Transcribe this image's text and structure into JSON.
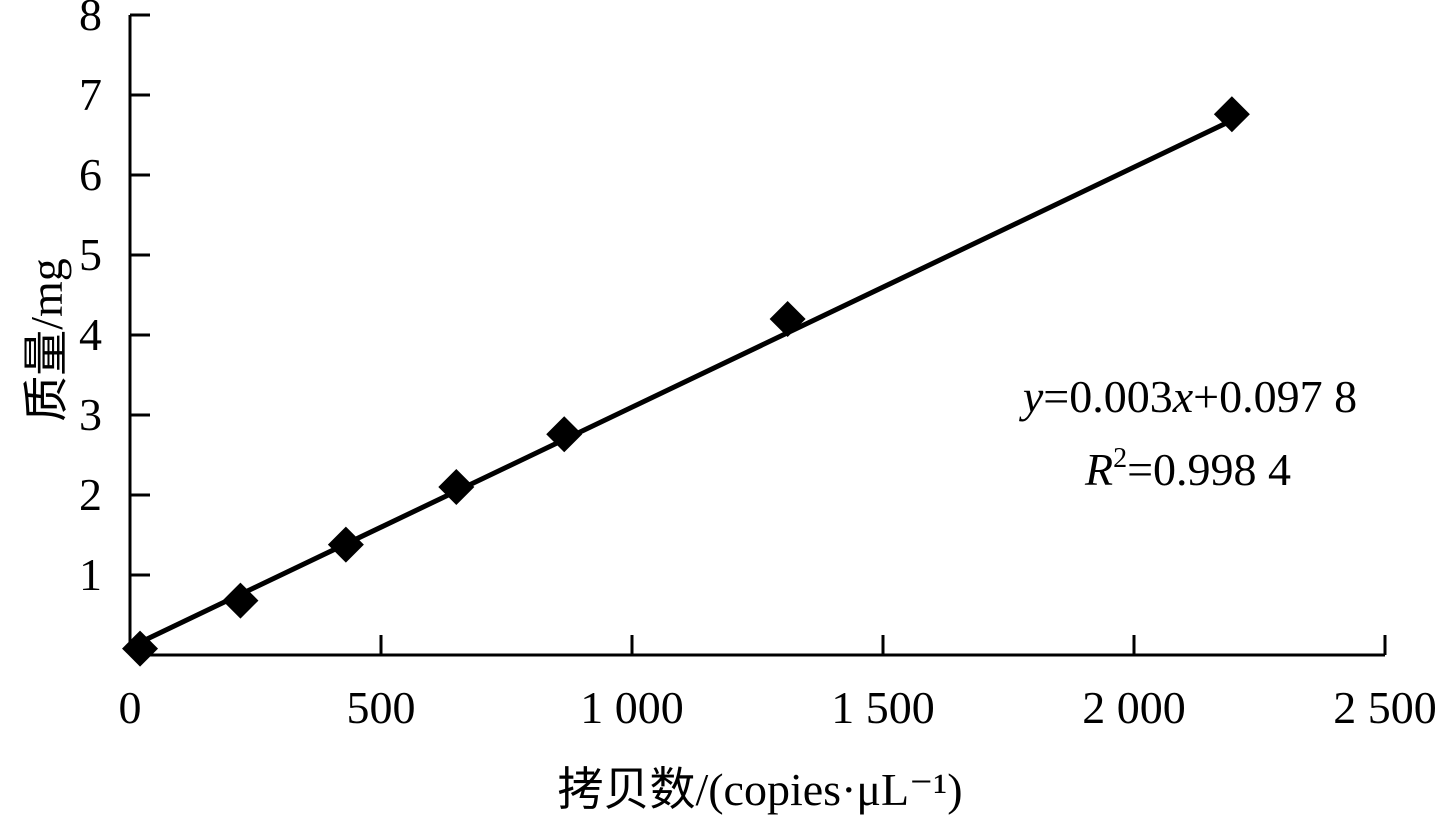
{
  "chart_data": {
    "type": "scatter",
    "title": "",
    "xlabel": "拷贝数/(copies·μL⁻¹)",
    "ylabel": "质量/mg",
    "xlim": [
      0,
      2500
    ],
    "ylim": [
      0,
      8
    ],
    "x_tick_values": [
      0,
      500,
      1000,
      1500,
      2000,
      2500
    ],
    "x_tick_labels": [
      "0",
      "500",
      "1 000",
      "1 500",
      "2 000",
      "2 500"
    ],
    "y_tick_values": [
      1,
      2,
      3,
      4,
      5,
      6,
      7,
      8
    ],
    "y_tick_labels": [
      "1",
      "2",
      "3",
      "4",
      "5",
      "6",
      "7",
      "8"
    ],
    "grid": false,
    "marker": "diamond",
    "series": [
      {
        "x": [
          20,
          220,
          430,
          650,
          865,
          1310,
          2195
        ],
        "y": [
          0.08,
          0.68,
          1.38,
          2.1,
          2.76,
          4.2,
          6.76
        ]
      }
    ],
    "trendline": {
      "slope": 0.003,
      "intercept": 0.0978,
      "x_range": [
        20,
        2195
      ]
    },
    "annotations": {
      "equation": {
        "y_var": "y",
        "rest1": "=0.003",
        "x_var": "x",
        "rest2": "+0.097 8"
      },
      "r_squared": {
        "r_var": "R",
        "sup": "2",
        "rest": "=0.998 4"
      }
    },
    "colors": {
      "line": "#000000",
      "marker": "#000000",
      "axis": "#000000"
    }
  }
}
